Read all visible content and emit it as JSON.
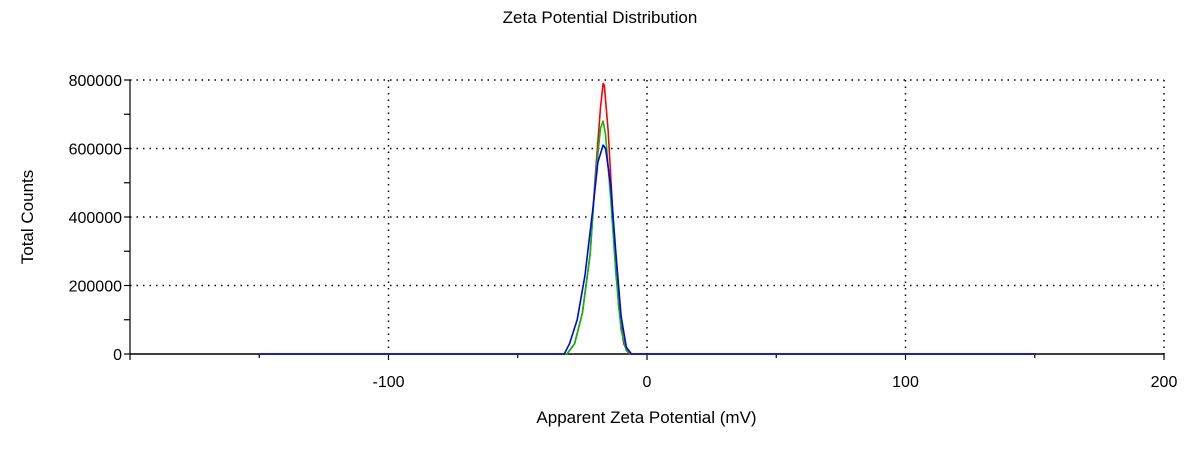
{
  "chart_data": {
    "type": "line",
    "title": "Zeta Potential Distribution",
    "xlabel": "Apparent Zeta Potential (mV)",
    "ylabel": "Total Counts",
    "xlim": [
      -200,
      200
    ],
    "ylim": [
      0,
      800000
    ],
    "x_ticks": [
      -100,
      0,
      100,
      200
    ],
    "y_ticks": [
      0,
      200000,
      400000,
      600000,
      800000
    ],
    "grid": true,
    "series": [
      {
        "color": "#ff0000",
        "x": [
          -150,
          -31,
          -28,
          -25,
          -22,
          -20,
          -18,
          -17,
          -16.5,
          -15,
          -13,
          -11,
          -9,
          -7,
          150
        ],
        "y": [
          0,
          0,
          30000,
          120000,
          290000,
          520000,
          720000,
          790000,
          785000,
          650000,
          380000,
          140000,
          30000,
          0,
          0
        ]
      },
      {
        "color": "#00c000",
        "x": [
          -150,
          -31,
          -28,
          -25,
          -22,
          -20,
          -18,
          -17,
          -16,
          -14,
          -12,
          -10,
          -8,
          -6,
          150
        ],
        "y": [
          0,
          0,
          30000,
          120000,
          290000,
          510000,
          660000,
          680000,
          640000,
          450000,
          230000,
          70000,
          10000,
          0,
          0
        ]
      },
      {
        "color": "#0000ff",
        "x": [
          -150,
          -32,
          -30,
          -27,
          -24,
          -21,
          -19,
          -17,
          -16,
          -14,
          -12,
          -10,
          -8,
          -6,
          150
        ],
        "y": [
          0,
          0,
          30000,
          100000,
          230000,
          420000,
          560000,
          610000,
          600000,
          490000,
          290000,
          110000,
          20000,
          0,
          0
        ]
      }
    ]
  }
}
